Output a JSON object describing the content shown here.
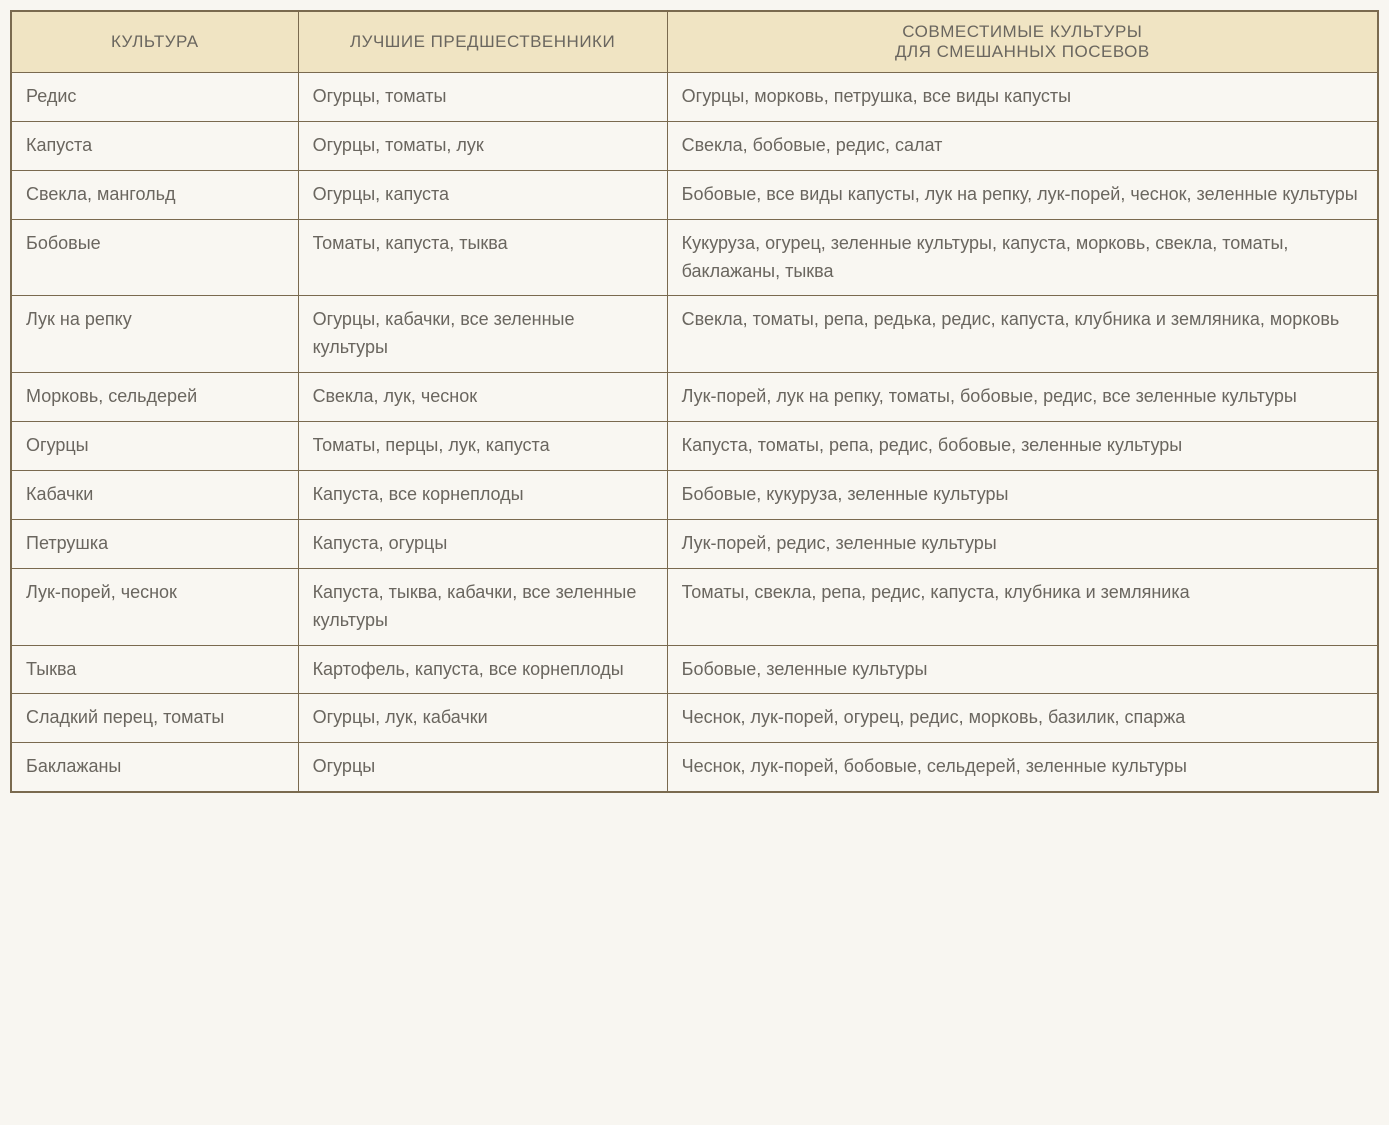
{
  "table": {
    "columns": [
      "КУЛЬТУРА",
      "ЛУЧШИЕ ПРЕДШЕСТВЕННИКИ",
      "СОВМЕСТИМЫЕ КУЛЬТУРЫ\nДЛЯ СМЕШАННЫХ ПОСЕВОВ"
    ],
    "col_widths_pct": [
      21,
      27,
      52
    ],
    "header_bg": "#f0e4c3",
    "body_bg": "#f9f7f2",
    "border_color": "#7a6a4f",
    "text_color": "#6a665f",
    "header_fontsize_pt": 13,
    "body_fontsize_pt": 14,
    "rows": [
      {
        "culture": "Редис",
        "predecessors": "Огурцы, томаты",
        "compatible": "Огурцы, морковь, петрушка, все виды капусты"
      },
      {
        "culture": "Капуста",
        "predecessors": "Огурцы, томаты, лук",
        "compatible": "Свекла, бобовые, редис, салат"
      },
      {
        "culture": "Свекла, мангольд",
        "predecessors": "Огурцы, капуста",
        "compatible": "Бобовые, все виды капусты, лук на репку, лук-порей, чеснок, зеленные культуры"
      },
      {
        "culture": "Бобовые",
        "predecessors": "Томаты, капуста, тыква",
        "compatible": "Кукуруза, огурец, зеленные культуры, капуста, морковь, свекла, томаты, баклажаны, тыква"
      },
      {
        "culture": "Лук на репку",
        "predecessors": "Огурцы, кабачки, все зеленные культуры",
        "compatible": "Свекла, томаты, репа, редька, редис, капуста, клубника и земляника, морковь"
      },
      {
        "culture": "Морковь, сельдерей",
        "predecessors": "Свекла, лук, чеснок",
        "compatible": "Лук-порей, лук на репку, томаты, бобовые, редис, все зеленные культуры"
      },
      {
        "culture": "Огурцы",
        "predecessors": "Томаты, перцы, лук, капуста",
        "compatible": "Капуста, томаты, репа, редис, бобовые, зеленные культуры"
      },
      {
        "culture": "Кабачки",
        "predecessors": "Капуста, все корнеплоды",
        "compatible": "Бобовые, кукуруза, зеленные культуры"
      },
      {
        "culture": "Петрушка",
        "predecessors": "Капуста, огурцы",
        "compatible": "Лук-порей, редис, зеленные культуры"
      },
      {
        "culture": "Лук-порей, чеснок",
        "predecessors": "Капуста, тыква, кабачки, все зеленные культуры",
        "compatible": "Томаты, свекла, репа, редис, капуста, клубника и земляника"
      },
      {
        "culture": "Тыква",
        "predecessors": "Картофель, капуста, все корнеплоды",
        "compatible": "Бобовые, зеленные культуры"
      },
      {
        "culture": "Сладкий перец, томаты",
        "predecessors": "Огурцы, лук, кабачки",
        "compatible": "Чеснок, лук-порей, огурец, редис, морковь, базилик, спаржа"
      },
      {
        "culture": "Баклажаны",
        "predecessors": "Огурцы",
        "compatible": "Чеснок, лук-порей, бобовые, сельдерей, зеленные культуры"
      }
    ]
  }
}
